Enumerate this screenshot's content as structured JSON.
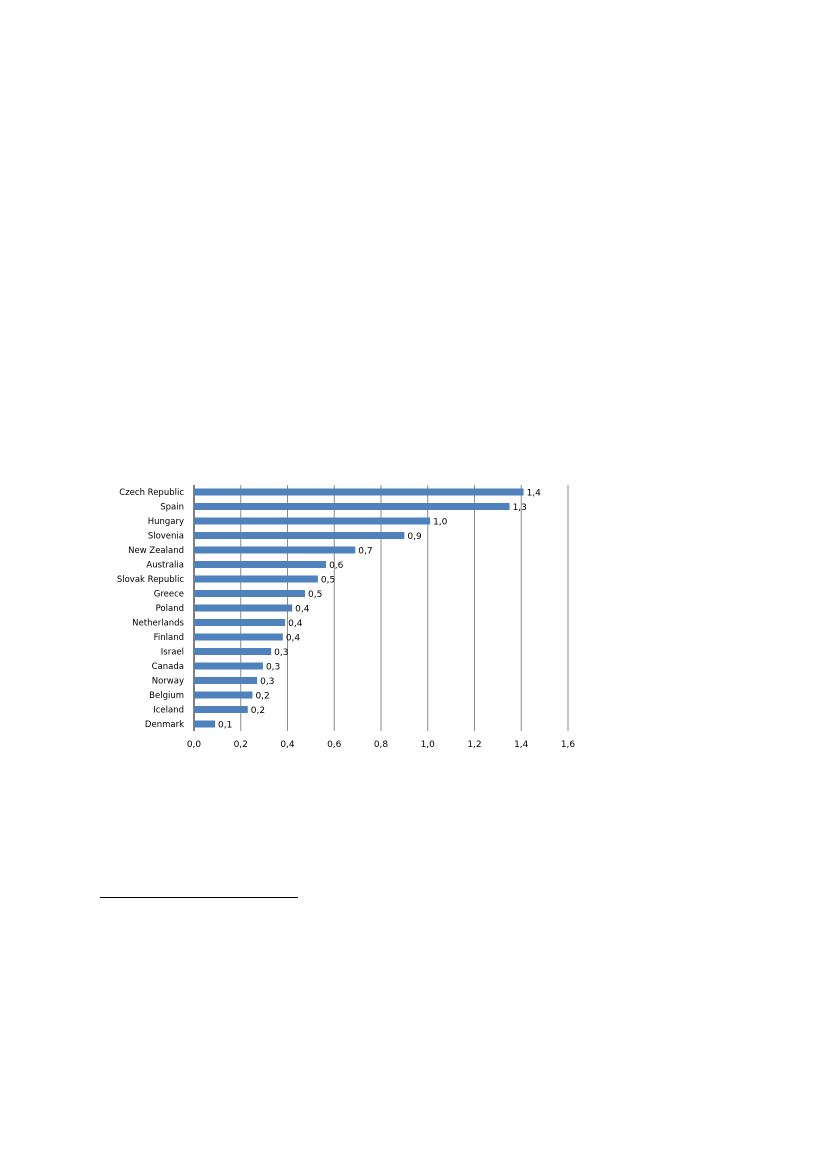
{
  "chart_data": {
    "type": "bar",
    "orientation": "horizontal",
    "categories": [
      "Czech Republic",
      "Spain",
      "Hungary",
      "Slovenia",
      "New Zealand",
      "Australia",
      "Slovak Republic",
      "Greece",
      "Poland",
      "Netherlands",
      "Finland",
      "Israel",
      "Canada",
      "Norway",
      "Belgium",
      "Iceland",
      "Denmark"
    ],
    "values": [
      1.41,
      1.35,
      1.01,
      0.9,
      0.69,
      0.565,
      0.53,
      0.475,
      0.42,
      0.39,
      0.38,
      0.33,
      0.295,
      0.27,
      0.25,
      0.23,
      0.09
    ],
    "data_labels": [
      "1,4",
      "1,3",
      "1,0",
      "0,9",
      "0,7",
      "0,6",
      "0,5",
      "0,5",
      "0,4",
      "0,4",
      "0,4",
      "0,3",
      "0,3",
      "0,3",
      "0,2",
      "0,2",
      "0,1"
    ],
    "xlim": [
      0,
      1.6
    ],
    "x_ticks": [
      "0,0",
      "0,2",
      "0,4",
      "0,6",
      "0,8",
      "1,0",
      "1,2",
      "1,4",
      "1,6"
    ],
    "grid": true,
    "legend": "none",
    "title": "",
    "xlabel": "",
    "ylabel": "",
    "bar_color": "#4f81bd",
    "grid_color": "#8c8c8c"
  }
}
